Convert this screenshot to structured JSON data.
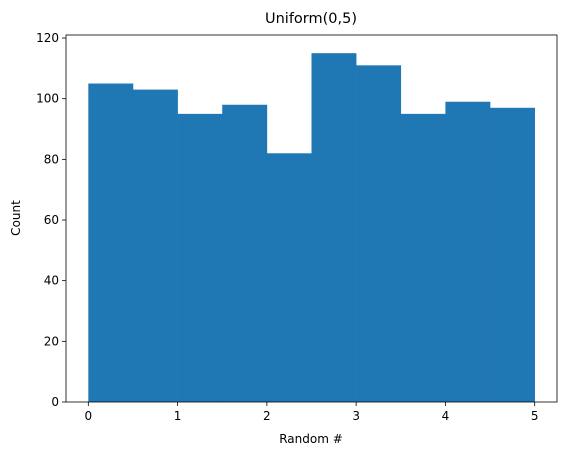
{
  "chart_data": {
    "type": "bar",
    "subtype": "histogram",
    "title": "Uniform(0,5)",
    "xlabel": "Random #",
    "ylabel": "Count",
    "bin_edges": [
      0,
      0.5,
      1,
      1.5,
      2,
      2.5,
      3,
      3.5,
      4,
      4.5,
      5
    ],
    "values": [
      105,
      103,
      95,
      98,
      82,
      115,
      111,
      95,
      99,
      97
    ],
    "xlim": [
      -0.25,
      5.25
    ],
    "ylim": [
      0,
      121
    ],
    "xticks": [
      0,
      1,
      2,
      3,
      4,
      5
    ],
    "xtick_labels": [
      "0",
      "1",
      "2",
      "3",
      "4",
      "5"
    ],
    "yticks": [
      0,
      20,
      40,
      60,
      80,
      100,
      120
    ],
    "ytick_labels": [
      "0",
      "20",
      "40",
      "60",
      "80",
      "100",
      "120"
    ],
    "grid": false,
    "bar_color": "#1f77b4"
  }
}
